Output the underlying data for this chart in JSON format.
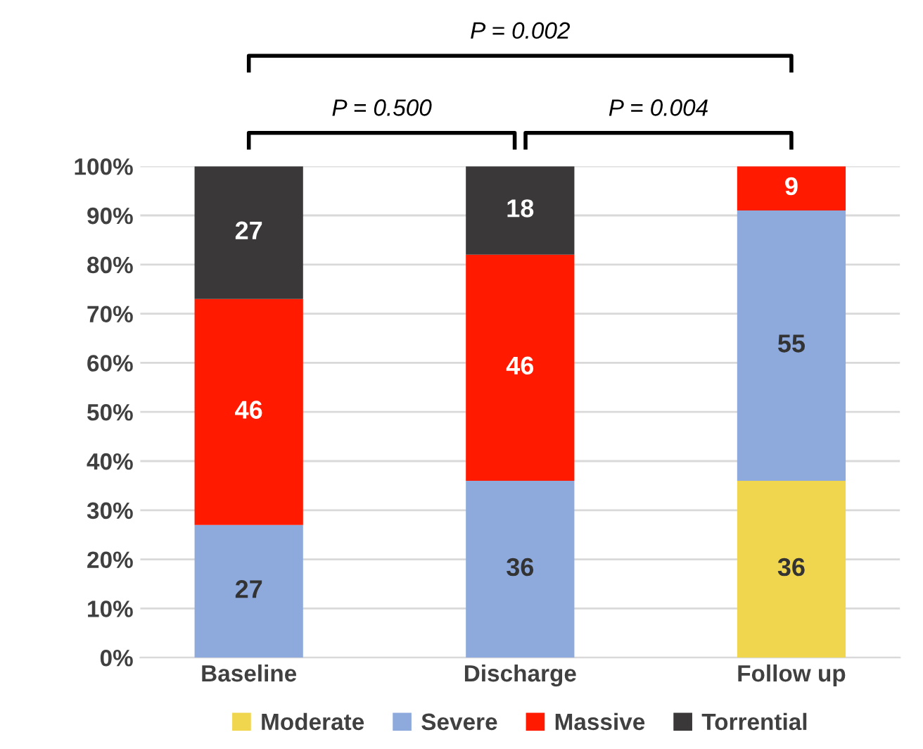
{
  "chart_data": {
    "type": "bar",
    "stacked": true,
    "categories": [
      "Baseline",
      "Discharge",
      "Follow up"
    ],
    "series": [
      {
        "name": "Moderate",
        "color": "#f0d64e",
        "values": [
          null,
          null,
          36
        ]
      },
      {
        "name": "Severe",
        "color": "#8eaadc",
        "values": [
          27,
          36,
          55
        ]
      },
      {
        "name": "Massive",
        "color": "#ff1a00",
        "values": [
          46,
          46,
          9
        ]
      },
      {
        "name": "Torrential",
        "color": "#3a3838",
        "values": [
          27,
          18,
          null
        ]
      }
    ],
    "ylim": [
      0,
      100
    ],
    "yticks": [
      {
        "value": 0,
        "label": "0%"
      },
      {
        "value": 10,
        "label": "10%"
      },
      {
        "value": 20,
        "label": "20%"
      },
      {
        "value": 30,
        "label": "30%"
      },
      {
        "value": 40,
        "label": "40%"
      },
      {
        "value": 50,
        "label": "50%"
      },
      {
        "value": 60,
        "label": "60%"
      },
      {
        "value": 70,
        "label": "70%"
      },
      {
        "value": 80,
        "label": "80%"
      },
      {
        "value": 90,
        "label": "90%"
      },
      {
        "value": 100,
        "label": "100%"
      }
    ],
    "grid": "y",
    "legend": "bottom",
    "data_labels": true,
    "annotations": [
      "P = 0.002",
      "P = 0.500",
      "P = 0.004"
    ]
  }
}
